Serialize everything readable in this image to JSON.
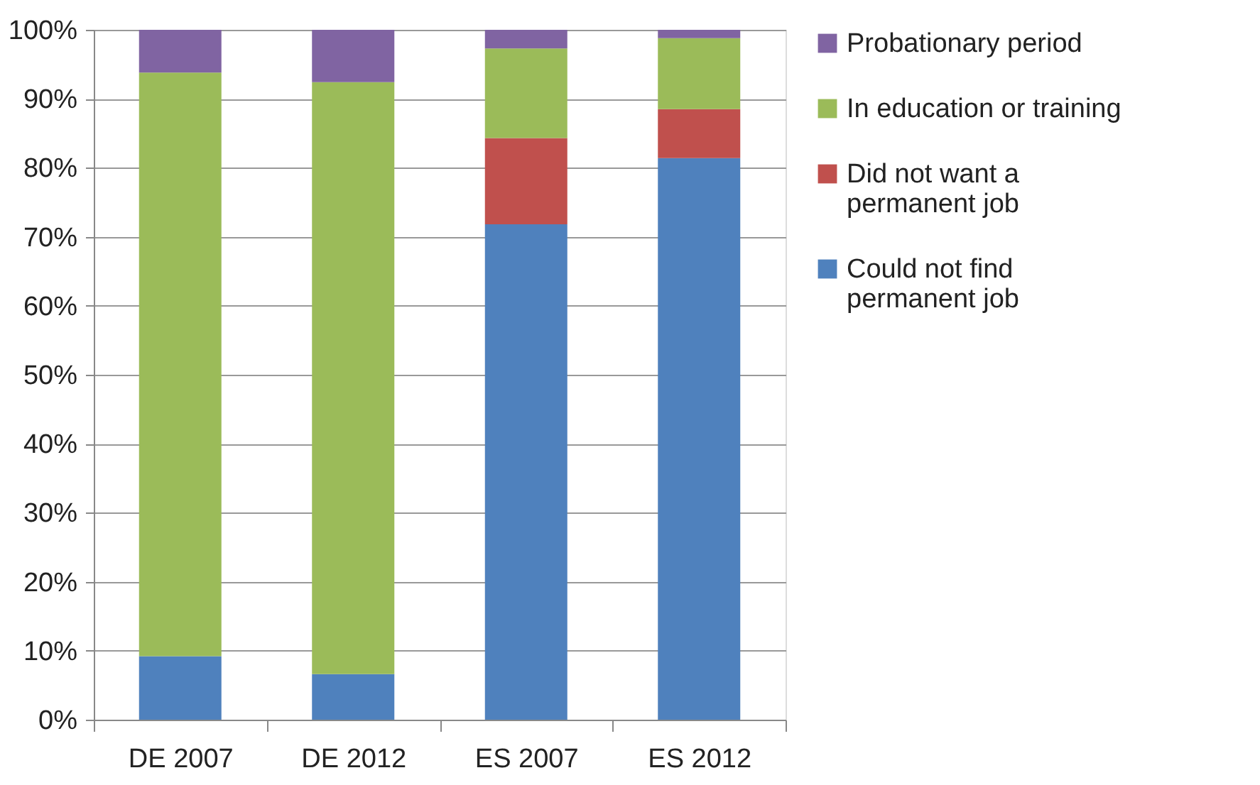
{
  "chart_data": {
    "type": "bar",
    "stacked": true,
    "categories": [
      "DE  2007",
      "DE  2012",
      "ES  2007",
      "ES  2012"
    ],
    "series": [
      {
        "name": "Could not find\npermanent job",
        "color": "#4f81bd",
        "values": [
          9.2,
          6.6,
          71.8,
          81.4
        ]
      },
      {
        "name": "Did not want a\npermanent job",
        "color": "#c0504d",
        "values": [
          0,
          0,
          12.5,
          7.1
        ]
      },
      {
        "name": "In education or training",
        "color": "#9bbb59",
        "values": [
          84.6,
          85.8,
          13.0,
          10.3
        ]
      },
      {
        "name": "Probationary period",
        "color": "#8064a2",
        "values": [
          6.2,
          7.6,
          2.7,
          1.2
        ]
      }
    ],
    "ylim": [
      0,
      100
    ],
    "yticks": [
      {
        "value": 0,
        "label": "0%"
      },
      {
        "value": 10,
        "label": "10%"
      },
      {
        "value": 20,
        "label": "20%"
      },
      {
        "value": 30,
        "label": "30%"
      },
      {
        "value": 40,
        "label": "40%"
      },
      {
        "value": 50,
        "label": "50%"
      },
      {
        "value": 60,
        "label": "60%"
      },
      {
        "value": 70,
        "label": "70%"
      },
      {
        "value": 80,
        "label": "80%"
      },
      {
        "value": 90,
        "label": "90%"
      },
      {
        "value": 100,
        "label": "100%"
      }
    ],
    "grid": "y",
    "legend": "right"
  }
}
